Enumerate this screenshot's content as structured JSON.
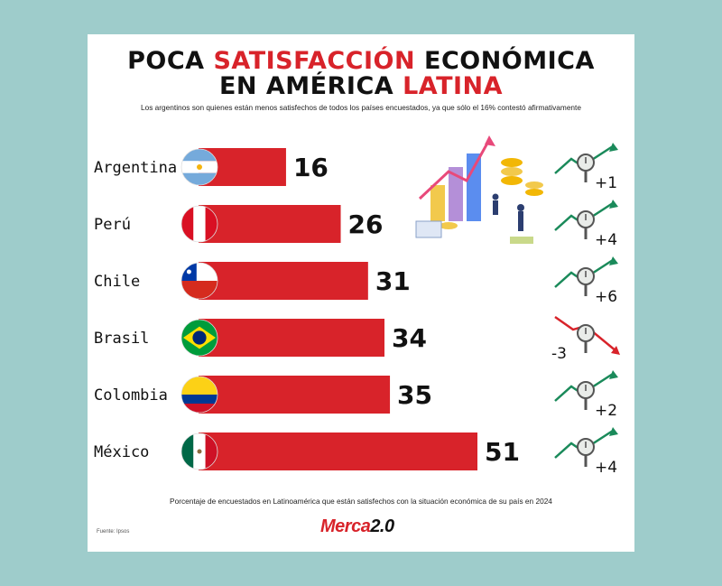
{
  "title": {
    "line1_a": "POCA ",
    "line1_b": "SATISFACCIÓN",
    "line1_c": " ECONÓMICA",
    "line2_a": "EN AMÉRICA ",
    "line2_b": "LATINA"
  },
  "subtitle": "Los argentinos son quienes están menos satisfechos de todos los países encuestados, ya que sólo el 16% contestó afirmativamente",
  "footer": "Porcentaje de encuestados en Latinoamérica que están satisfechos con la situación económica de su país en 2024",
  "source": "Fuente: Ipsos",
  "logo": {
    "brand": "Merca",
    "suffix": "2.0"
  },
  "colors": {
    "bar": "#d8232a",
    "up": "#1a8a5a",
    "down": "#d8232a"
  },
  "chart_data": {
    "type": "bar",
    "orientation": "horizontal",
    "categories": [
      "Argentina",
      "Perú",
      "Chile",
      "Brasil",
      "Colombia",
      "México"
    ],
    "values": [
      16,
      26,
      31,
      34,
      35,
      51
    ],
    "changes": [
      "+1",
      "+4",
      "+6",
      "-3",
      "+2",
      "+4"
    ],
    "change_direction": [
      "up",
      "up",
      "up",
      "down",
      "up",
      "up"
    ],
    "flags": [
      "flag-argentina",
      "flag-peru",
      "flag-chile",
      "flag-brazil",
      "flag-colombia",
      "flag-mexico"
    ],
    "title": "",
    "xlabel": "",
    "ylabel": "",
    "xlim": [
      0,
      51
    ]
  }
}
